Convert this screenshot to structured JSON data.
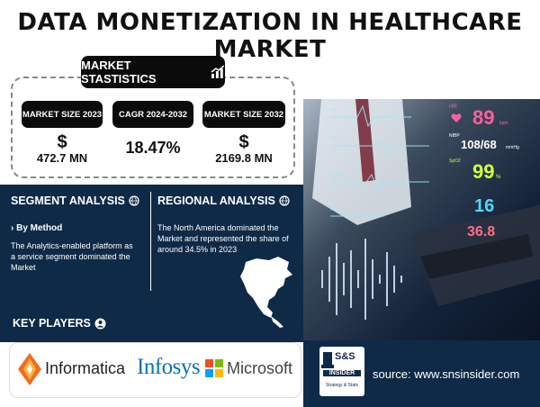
{
  "title": "DATA MONETIZATION IN HEALTHCARE MARKET",
  "stats": {
    "header": "MARKET STASTISTICS",
    "items": [
      {
        "label": "MARKET SIZE 2023",
        "symbol": "$",
        "value": "472.7 MN"
      },
      {
        "label": "CAGR 2024-2032",
        "symbol": "",
        "value": "18.47%"
      },
      {
        "label": "MARKET SIZE 2032",
        "symbol": "$",
        "value": "2169.8 MN"
      }
    ]
  },
  "segment": {
    "header": "SEGMENT ANALYSIS",
    "sub": "› By Method",
    "text": "The Analytics-enabled platform as a service segment dominated the Market"
  },
  "regional": {
    "header": "REGIONAL ANALYSIS",
    "text": "The North America dominated the Market and represented the share of around 34.5% in 2023"
  },
  "key_players": {
    "header": "KEY PLAYERS",
    "companies": [
      "Informatica",
      "Infosys",
      "Microsoft"
    ]
  },
  "monitor": {
    "hr_label": "HR",
    "hr": "89",
    "hr_unit": "bpm",
    "bp_label": "NIBP",
    "bp": "108/68",
    "bp_unit": "mmHg",
    "spo2_label": "SpO2",
    "spo2": "99",
    "spo2_unit": "%",
    "rr": "16",
    "temp": "36.8",
    "left_labels": [
      "HR",
      "RR",
      "SpO2",
      "RR"
    ]
  },
  "logo": {
    "top": "S&S",
    "mid": "INSIDER",
    "bottom": "Strategy & Stats"
  },
  "source": "source: www.snsinsider.com",
  "colors": {
    "navy": "#0e2a47",
    "black": "#0b0b0b",
    "informatica_orange": "#f26b21",
    "infosys_blue": "#0a71b5"
  }
}
